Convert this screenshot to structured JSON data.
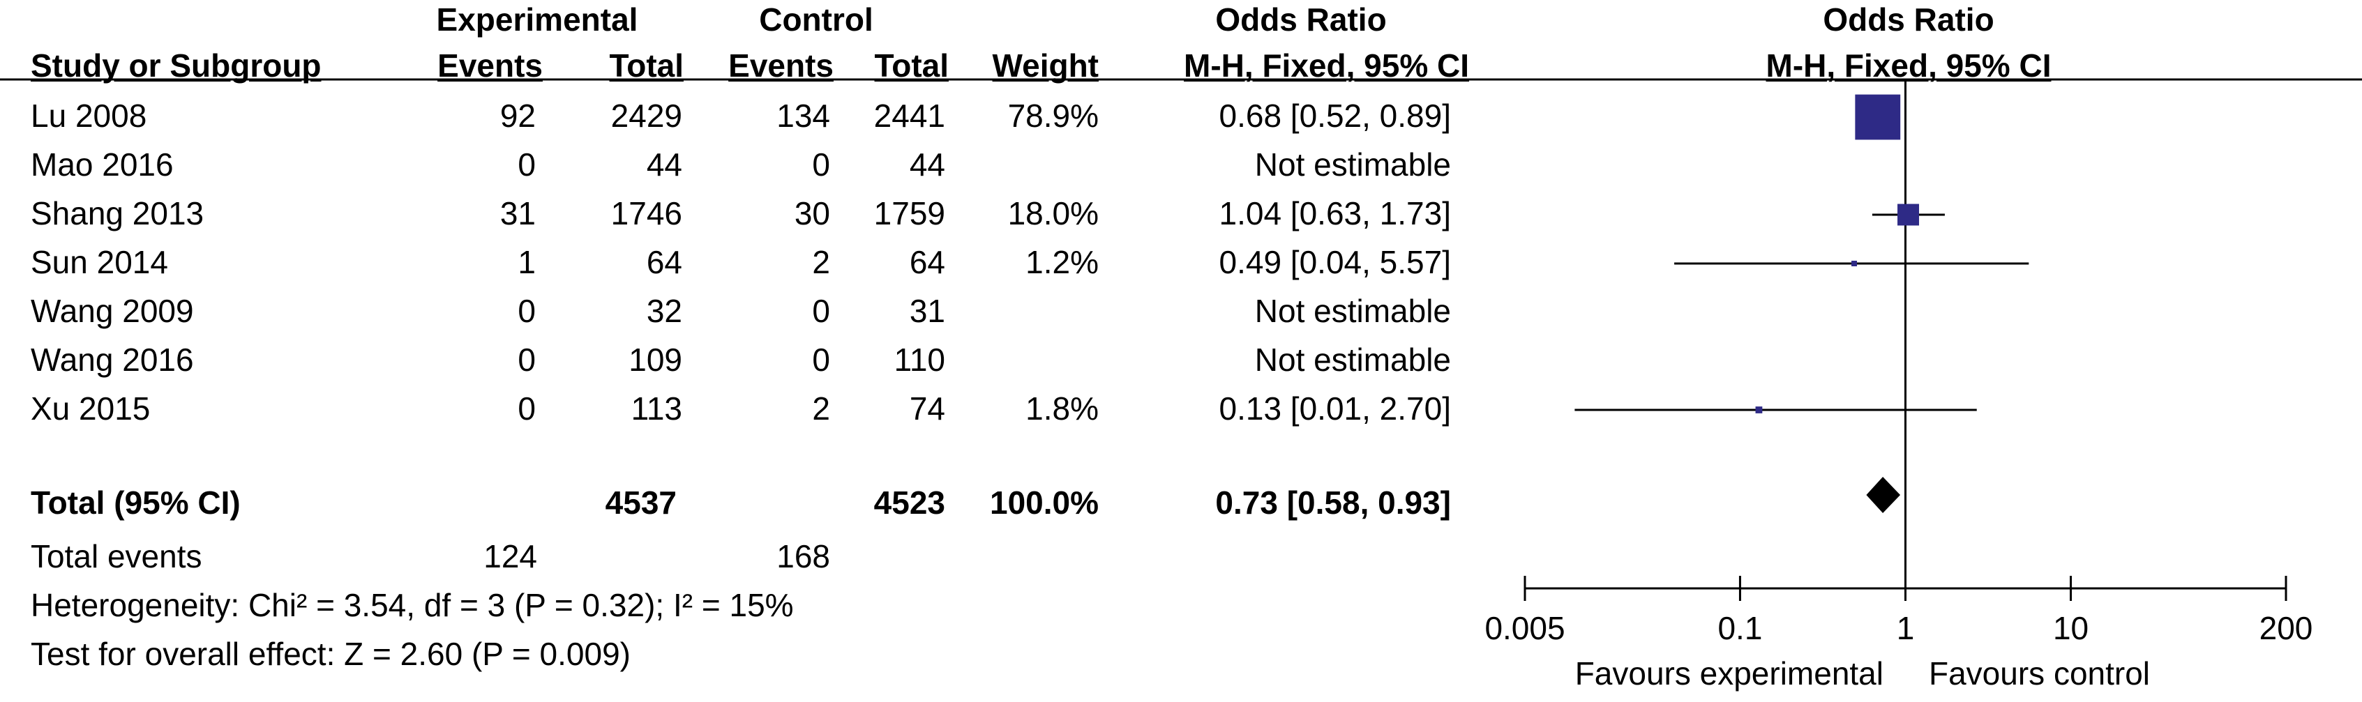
{
  "header": {
    "group_experimental": "Experimental",
    "group_control": "Control",
    "odds_ratio_left": "Odds Ratio",
    "odds_ratio_right": "Odds Ratio",
    "col_study": "Study or Subgroup",
    "col_exp_events": "Events",
    "col_exp_total": "Total",
    "col_ctl_events": "Events",
    "col_ctl_total": "Total",
    "col_weight": "Weight",
    "col_method": "M-H, Fixed, 95% CI",
    "col_method_right": "M-H, Fixed, 95% CI"
  },
  "studies": [
    {
      "name": "Lu 2008",
      "exp_events": "92",
      "exp_total": "2429",
      "ctl_events": "134",
      "ctl_total": "2441",
      "weight": "78.9%",
      "or_text": "0.68 [0.52, 0.89]"
    },
    {
      "name": "Mao 2016",
      "exp_events": "0",
      "exp_total": "44",
      "ctl_events": "0",
      "ctl_total": "44",
      "weight": "",
      "or_text": "Not estimable"
    },
    {
      "name": "Shang 2013",
      "exp_events": "31",
      "exp_total": "1746",
      "ctl_events": "30",
      "ctl_total": "1759",
      "weight": "18.0%",
      "or_text": "1.04 [0.63, 1.73]"
    },
    {
      "name": "Sun 2014",
      "exp_events": "1",
      "exp_total": "64",
      "ctl_events": "2",
      "ctl_total": "64",
      "weight": "1.2%",
      "or_text": "0.49 [0.04, 5.57]"
    },
    {
      "name": "Wang 2009",
      "exp_events": "0",
      "exp_total": "32",
      "ctl_events": "0",
      "ctl_total": "31",
      "weight": "",
      "or_text": "Not estimable"
    },
    {
      "name": "Wang 2016",
      "exp_events": "0",
      "exp_total": "109",
      "ctl_events": "0",
      "ctl_total": "110",
      "weight": "",
      "or_text": "Not estimable"
    },
    {
      "name": "Xu 2015",
      "exp_events": "0",
      "exp_total": "113",
      "ctl_events": "2",
      "ctl_total": "74",
      "weight": "1.8%",
      "or_text": "0.13 [0.01, 2.70]"
    }
  ],
  "total": {
    "label": "Total (95% CI)",
    "exp_total": "4537",
    "ctl_total": "4523",
    "weight": "100.0%",
    "or_text": "0.73 [0.58, 0.93]"
  },
  "total_events": {
    "label": "Total events",
    "exp": "124",
    "ctl": "168"
  },
  "heterogeneity": "Heterogeneity: Chi² = 3.54, df = 3 (P = 0.32); I² = 15%",
  "overall_effect": "Test for overall effect: Z = 2.60 (P = 0.009)",
  "chart_data": {
    "type": "forest",
    "scale": "log",
    "xlim": [
      0.005,
      200
    ],
    "x_ticks": [
      0.005,
      0.1,
      1,
      10,
      200
    ],
    "x_tick_labels": [
      "0.005",
      "0.1",
      "1",
      "10",
      "200"
    ],
    "reference_line": 1,
    "favours_left": "Favours experimental",
    "favours_right": "Favours control",
    "estimates": [
      {
        "study": "Lu 2008",
        "or": 0.68,
        "lo": 0.52,
        "hi": 0.89,
        "weight": 78.9
      },
      {
        "study": "Shang 2013",
        "or": 1.04,
        "lo": 0.63,
        "hi": 1.73,
        "weight": 18.0
      },
      {
        "study": "Sun 2014",
        "or": 0.49,
        "lo": 0.04,
        "hi": 5.57,
        "weight": 1.2
      },
      {
        "study": "Xu 2015",
        "or": 0.13,
        "lo": 0.01,
        "hi": 2.7,
        "weight": 1.8
      }
    ],
    "pooled": {
      "or": 0.73,
      "lo": 0.58,
      "hi": 0.93
    },
    "marker_color": "#2e2a86",
    "diamond_color": "#000000"
  }
}
